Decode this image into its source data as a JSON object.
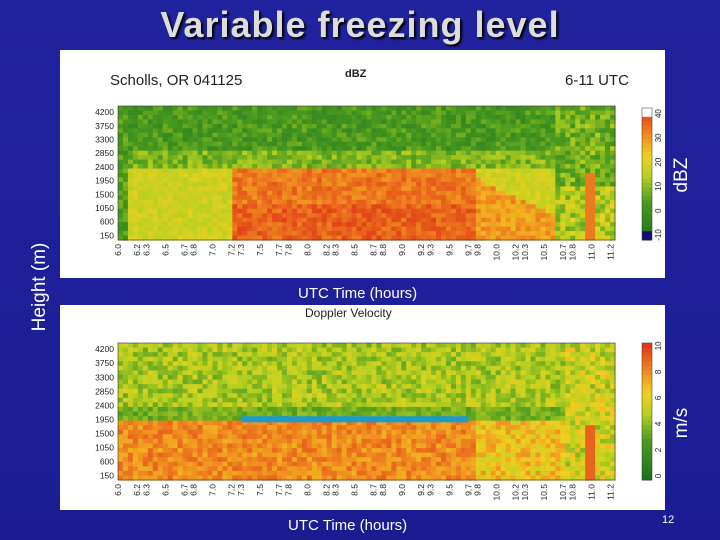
{
  "slide": {
    "title": "Variable freezing level",
    "page_number": "12",
    "y_axis_label": "Height (m)"
  },
  "chart_data": [
    {
      "type": "heatmap",
      "title": "dBZ",
      "site_label": "Scholls, OR 041125",
      "time_label": "6-11 UTC",
      "xlabel": "UTC Time (hours)",
      "ylabel": "Height (m)",
      "colorbar_label": "dBZ",
      "x_ticks": [
        "6.0",
        "6.2",
        "6.3",
        "6.5",
        "6.7",
        "6.8",
        "7.0",
        "7.2",
        "7.3",
        "7.5",
        "7.7",
        "7.8",
        "8.0",
        "8.2",
        "8.3",
        "8.5",
        "8.7",
        "8.8",
        "9.0",
        "9.2",
        "9.3",
        "9.5",
        "9.7",
        "9.8",
        "10.0",
        "10.2",
        "10.3",
        "10.5",
        "10.7",
        "10.8",
        "11.0",
        "11.2"
      ],
      "y_ticks": [
        "4200",
        "3750",
        "3300",
        "2850",
        "2400",
        "1950",
        "1500",
        "1050",
        "600",
        "150"
      ],
      "colorbar_ticks": [
        "-10",
        "0",
        "10",
        "20",
        "30",
        "40"
      ],
      "bright_band": {
        "start_time": 7.2,
        "end_time": 9.8,
        "top_height": 2300,
        "bottom_height": 150
      },
      "colors": {
        "low": "#1a7a1a",
        "mid": "#c8d820",
        "high": "#e8401a",
        "max": "#ffffff",
        "min": "#101070"
      }
    },
    {
      "type": "heatmap",
      "title": "Doppler Velocity",
      "xlabel": "UTC Time (hours)",
      "ylabel": "Height (m)",
      "colorbar_label": "m/s",
      "x_ticks": [
        "6.0",
        "6.2",
        "6.3",
        "6.5",
        "6.7",
        "6.8",
        "7.0",
        "7.2",
        "7.3",
        "7.5",
        "7.7",
        "7.8",
        "8.0",
        "8.2",
        "8.3",
        "8.5",
        "8.7",
        "8.8",
        "9.0",
        "9.2",
        "9.3",
        "9.5",
        "9.7",
        "9.8",
        "10.0",
        "10.2",
        "10.3",
        "10.5",
        "10.7",
        "10.8",
        "11.0",
        "11.2"
      ],
      "y_ticks": [
        "4200",
        "3750",
        "3300",
        "2850",
        "2400",
        "1950",
        "1500",
        "1050",
        "600",
        "150"
      ],
      "colorbar_ticks": [
        "0",
        "2",
        "4",
        "6",
        "8",
        "10"
      ],
      "melting_level_line": {
        "start_time": 7.3,
        "end_time": 9.7,
        "height": 1950,
        "color": "#1a9ad0"
      },
      "colors": {
        "low": "#1a7a1a",
        "mid": "#c8d820",
        "high": "#e8401a"
      }
    }
  ]
}
